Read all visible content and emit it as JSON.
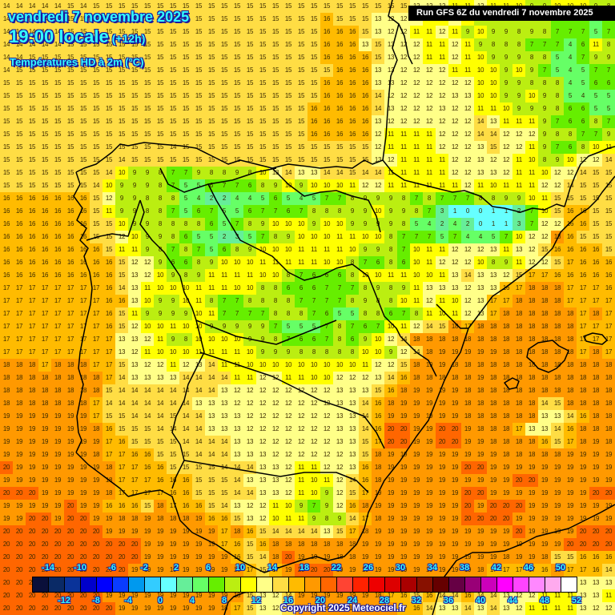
{
  "header": {
    "date": "vendredi 7 novembre 2025",
    "time": "19:00 locale",
    "offset": "(+12h)",
    "variable": "Températures HD à 2m (°C)"
  },
  "run_banner": "Run GFS 6Z du vendredi 7 novembre 2025",
  "copyright": "Copyright 2025 Meteociel.fr",
  "legend": {
    "colors": [
      "#0a0f3a",
      "#0a2a66",
      "#0a3399",
      "#0000cc",
      "#0000ff",
      "#0a3cff",
      "#0099ee",
      "#33ccff",
      "#66ffff",
      "#66ee99",
      "#66ff66",
      "#66ee00",
      "#bbee11",
      "#ffff00",
      "#ffff88",
      "#ffdd44",
      "#ffbb00",
      "#ff9900",
      "#ff6600",
      "#ff4433",
      "#ff2200",
      "#ee0000",
      "#dd0000",
      "#aa0000",
      "#881100",
      "#660000",
      "#660044",
      "#990077",
      "#cc00bb",
      "#ff00ff",
      "#ff44ff",
      "#ff88ff",
      "#ffaaee",
      "#ffffff"
    ],
    "top_labels": [
      "-14",
      "-10",
      "-6",
      "-2",
      "2",
      "6",
      "10",
      "14",
      "18",
      "22",
      "26",
      "30",
      "34",
      "38",
      "42",
      "46",
      "50"
    ],
    "bottom_labels": [
      "-12",
      "-8",
      "-4",
      "0",
      "4",
      "8",
      "12",
      "16",
      "20",
      "24",
      "28",
      "32",
      "36",
      "40",
      "44",
      "48",
      "52"
    ]
  },
  "map": {
    "region": "Iberian Peninsula, Bay of Biscay, southern France, Balearic Islands, northern Morocco/Algeria",
    "units": "°C",
    "grid_cols": 48,
    "grid_rows": 48,
    "rows": [
      "14 14 14 14 14 15 14 15 15 15 15 15 15 15 15 15 15 15 15 15 15 15 15 15 15 15 15 15 15 15 15 15 12 12 12 11 11 12 11 11 10 9 9 10 10 10 9 8",
      "14 14 14 14 14 15 15 15 15 15 15 15 15 15 15 15 15 15 15 15 15 15 15 15 15 16 15 15 15 13 12 12 12 11 11 12 11 9 9 9 8 9 8 7 7 7 5 7",
      "14 14 14 14 14 15 15 15 15 15 15 15 15 15 15 15 15 15 15 15 15 15 15 15 15 16 16 16 15 13 12 12 11 11 12 11 9 10 9 9 8 9 8 7 7 7 5 7",
      "14 14 14 14 14 15 15 15 15 15 15 15 15 15 15 15 15 15 15 15 15 15 15 15 15 16 16 16 13 15 13 12 12 11 11 12 11 9 8 8 8 7 7 7 4 6 11 8",
      "14 14 15 15 15 15 15 15 15 15 15 15 15 15 15 15 15 15 15 15 15 15 15 15 15 16 16 16 16 15 13 12 12 11 11 12 11 10 9 9 9 8 8 5 4 7 9 9",
      "14 15 15 15 15 15 15 15 15 15 15 15 15 15 15 15 15 15 15 15 15 15 15 15 15 15 16 16 16 13 13 12 12 12 12 11 11 10 10 9 10 9 7 5 4 5 7 7",
      "15 15 15 15 15 15 15 15 15 15 15 15 15 15 15 15 15 15 15 15 15 15 15 15 15 16 16 16 16 13 13 12 12 12 12 12 12 10 10 9 9 8 8 8 4 5 6 6",
      "15 15 15 15 15 15 15 15 15 15 15 15 15 15 15 15 15 15 15 15 15 15 15 15 15 16 16 16 16 14 12 12 12 12 12 13 13 10 10 9 9 10 9 8 5 4 5 5",
      "15 15 15 15 15 15 15 15 15 15 15 15 15 15 15 15 15 15 15 15 15 15 15 15 16 16 16 16 16 14 13 12 12 12 13 12 12 11 11 10 9 9 9 8 6 6 5 5",
      "15 15 15 15 15 15 15 15 15 15 15 15 15 15 15 15 15 15 15 15 15 15 15 15 16 16 16 16 16 13 12 12 12 12 12 12 12 14 13 11 11 11 9 7 6 6 8 7",
      "15 15 15 15 15 15 15 15 15 15 15 15 15 15 15 15 15 15 15 15 15 15 15 15 16 16 16 16 16 12 11 11 11 11 12 12 12 14 14 12 12 12 9 8 8 7 7 9",
      "15 15 15 15 15 15 15 15 15 15 15 15 15 14 15 15 15 15 15 15 15 15 15 15 15 15 15 15 15 12 11 11 11 11 12 12 12 13 15 12 12 11 9 7 6 8 10 11",
      "15 15 15 15 15 15 15 15 15 14 15 15 15 15 15 15 15 15 15 15 15 15 15 15 15 15 15 15 15 13 12 11 11 11 11 12 12 13 12 12 11 10 8 9 10 12 12 14",
      "15 15 15 15 15 15 15 15 14 10 9 9 8 7 7 9 8 8 9 8 10 13 14 13 13 14 14 15 14 14 11 11 11 11 11 12 12 13 13 12 11 11 10 12 12 14 15 15",
      "15 15 15 15 15 15 15 14 10 9 9 9 8 7 5 5 6 7 7 6 8 9 10 9 10 10 10 11 12 12 11 11 11 11 11 11 12 11 10 11 11 11 12 12 14 15 15 15",
      "16 16 16 16 16 16 16 15 12 9 9 8 8 8 5 4 2 2 4 4 5 6 5 4 5 7 7 8 9 9 9 8 7 8 7 7 7 8 8 9 9 10 11 15 15 15 15 15",
      "16 16 16 16 16 16 16 15 11 9 9 8 8 7 5 6 7 5 5 6 7 7 6 7 8 8 8 9 9 10 9 9 8 7 3 1 0 0 1 1 2 7 10 15 16 16 15 15",
      "16 16 16 16 16 16 16 15 15 10 9 9 8 8 8 8 6 5 7 8 9 10 10 10 9 10 10 9 9 9 9 8 5 4 2 4 2 0 1 1 3 7 12 12 16 16 15 15",
      "16 16 16 16 16 16 16 15 15 12 10 9 9 8 6 5 5 2 3 5 7 8 9 10 10 10 11 11 10 10 8 7 7 7 5 7 4 4 5 7 10 12 12 18 16 15 15 15",
      "16 16 16 16 16 16 16 16 15 11 11 9 8 7 8 7 5 6 8 9 10 10 10 11 11 11 11 10 9 9 8 7 10 11 11 12 12 12 13 11 13 12 15 16 16 16 16 15",
      "16 16 16 16 16 16 16 16 16 15 12 12 9 6 6 8 9 10 10 10 11 11 11 11 11 10 10 8 7 6 8 6 10 11 12 12 12 10 8 9 11 12 12 15 17 16 16 16",
      "16 16 16 16 16 16 16 16 16 15 13 12 10 9 8 9 11 11 11 11 10 10 8 7 6 6 6 8 10 10 11 11 10 10 11 13 14 13 13 12 15 17 17 16 16 16 16 16",
      "17 17 17 17 17 17 17 17 16 14 13 11 10 10 10 11 11 11 10 10 8 8 6 6 6 7 7 7 8 9 8 9 11 13 13 13 12 13 13 16 17 18 18 18 17 17 17 16",
      "17 17 17 17 17 17 17 17 16 16 13 10 9 9 10 11 8 7 7 8 8 8 8 7 7 7 7 8 9 8 8 10 11 12 11 10 12 13 17 17 18 18 18 18 17 17 17 17",
      "17 17 17 17 17 17 17 17 16 15 11 9 9 9 9 10 11 7 7 7 7 8 8 8 7 6 5 5 8 8 6 7 8 11 10 11 12 13 17 18 18 18 18 18 18 17 18 17",
      "17 17 17 17 17 17 17 17 16 15 12 10 10 11 10 10 9 9 9 9 9 7 5 5 5 7 8 7 6 7 10 11 12 14 15 18 17 18 18 18 18 18 18 18 18 17 17 17",
      "17 17 17 17 17 17 17 17 17 13 13 12 11 9 8 10 10 10 10 9 9 8 7 6 6 7 8 6 9 10 12 14 18 18 18 18 18 18 18 18 18 18 18 18 18 17 17 17",
      "17 17 17 17 17 17 17 17 17 13 12 11 10 10 10 11 11 11 11 10 9 9 9 8 8 8 8 8 10 10 9 12 14 18 19 19 19 19 19 18 18 18 18 18 18 17 18 17",
      "18 18 18 17 18 18 18 17 17 15 13 12 12 11 12 13 14 11 11 10 10 10 10 10 10 10 10 10 11 12 12 15 18 19 19 18 18 18 18 18 18 18 18 18 18 18 18 18",
      "18 18 18 18 18 18 18 18 17 14 13 13 13 13 14 14 14 14 11 11 12 12 11 11 10 10 12 12 12 13 14 16 18 18 18 18 18 19 18 18 18 18 18 18 18 18 18 18",
      "18 18 18 18 18 18 18 18 15 14 14 14 14 14 14 14 14 13 12 12 12 12 12 12 12 12 13 13 13 15 16 18 19 19 19 19 18 18 18 18 18 18 18 18 18 18 18 18",
      "18 18 18 18 18 18 18 17 14 14 14 14 14 14 14 13 13 13 12 12 12 12 12 12 12 12 13 13 14 16 18 19 19 19 19 19 18 18 18 18 18 18 14 15 18 18 18 18",
      "19 19 19 19 19 19 19 17 15 15 14 14 14 15 14 14 13 13 13 12 12 12 12 12 12 12 13 13 14 16 19 19 19 19 19 19 18 18 18 18 18 18 13 13 14 16 18 18",
      "19 19 19 19 19 19 19 18 16 15 15 15 14 14 14 14 13 13 13 12 12 12 12 12 12 12 13 13 14 16 20 20 19 19 20 20 19 18 18 18 17 13 13 14 16 18 18 18",
      "19 19 19 19 19 19 19 19 17 16 15 15 15 15 14 14 14 14 13 13 12 12 12 12 12 12 13 13 15 17 20 20 19 19 20 20 19 19 18 18 18 18 16 15 17 18 19 18",
      "19 19 19 19 19 19 19 18 17 17 16 16 15 15 15 14 14 14 13 13 13 12 12 12 12 12 12 13 15 18 19 19 19 19 19 19 19 19 19 18 18 18 18 18 19 19 19 19",
      "20 19 19 19 19 19 19 19 18 17 17 16 16 15 15 15 15 14 14 14 13 13 12 11 11 12 12 13 16 18 19 19 19 19 19 19 20 20 19 19 19 19 19 19 19 19 19 19",
      "19 19 19 19 19 19 19 19 18 17 17 17 16 16 16 15 15 15 14 13 13 13 12 11 10 11 12 14 16 18 19 19 19 19 19 19 19 19 19 19 20 20 19 19 19 19 19 19",
      "20 20 20 19 19 19 19 19 18 17 17 17 17 16 16 15 15 15 14 14 13 13 12 11 10 9 12 15 17 19 19 19 19 19 19 19 20 20 19 19 19 19 19 19 19 19 20 20",
      "19 19 19 19 19 20 19 19 16 16 16 15 18 17 16 16 15 14 13 12 12 11 10 9 7 9 12 16 18 19 19 19 19 19 19 19 20 19 20 20 20 19 19 19 19 19 19 19",
      "19 19 20 20 19 20 20 19 19 18 18 19 18 18 18 19 16 16 15 13 12 10 11 11 9 8 9 14 17 18 19 19 19 19 19 19 20 20 20 20 19 19 19 19 19 19 19 19",
      "20 20 20 20 20 20 20 20 19 19 19 19 19 19 19 19 19 17 18 16 15 14 14 14 14 13 15 17 18 19 19 19 19 19 19 19 19 19 19 19 20 19 19 19 19 20 20 20",
      "20 20 20 20 20 20 20 20 20 20 20 19 19 19 19 19 19 17 16 15 16 18 18 18 18 18 18 18 19 19 19 19 19 19 19 19 19 19 19 19 19 19 19 19 20 20 20 20",
      "20 20 20 20 20 20 20 20 20 20 20 19 19 19 19 19 19 19 16 15 14 18 20 19 19 19 18 18 19 19 19 19 19 19 19 19 19 19 19 18 19 19 18 15 15 16 16 16",
      "20 20 20 20 20 20 20 20 20 20 19 19 19 19 19 19 19 19 18 17 15 17 19 20 20 20 19 19 19 19 19 19 19 19 19 19 19 18 17 17 17 17 16 18 17 17 16 14",
      "20 20 20 20 20 20 20 20 19 19 19 19 19 19 19 19 19 19 18 15 15 17 19 20 20 20 19 19 19 19 19 19 19 18 17 17 18 18 17 16 14 13 12 14 15 13 13 13",
      "20 20 20 20 20 20 20 20 19 19 19 19 19 19 19 19 19 19 18 15 13 12 14 19 19 19 19 19 19 18 17 16 15 16 14 14 16 14 14 13 12 12 11 11 11 13 13 11",
      "20 20 20 20 20 20 20 20 20 19 19 19 19 19 19 19 19 18 17 15 13 12 14 19 19 19 19 19 19 18 18 17 16 14 13 13 14 13 14 13 12 11 11 11 11 13 12 12"
    ]
  }
}
